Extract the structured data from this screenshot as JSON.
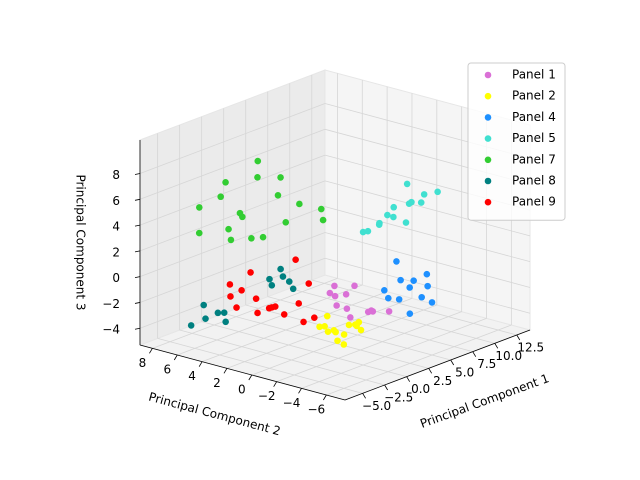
{
  "chart_data": {
    "type": "scatter3d",
    "xlabel": "Principal Component 1",
    "ylabel": "Principal Component 2",
    "zlabel": "Principal Component 3",
    "xlim": [
      -7,
      14
    ],
    "ylim": [
      -7.5,
      9
    ],
    "zlim": [
      -5.3,
      10.6
    ],
    "xticks": [
      {
        "value": -5,
        "label": "−5.0"
      },
      {
        "value": -2.5,
        "label": "−2.5"
      },
      {
        "value": 0,
        "label": "0.0"
      },
      2.5,
      {
        "value": 5,
        "label": "5.0"
      },
      7.5,
      {
        "value": 10,
        "label": "10.0"
      },
      12.5
    ],
    "yticks": [
      8,
      6,
      4,
      2,
      0,
      {
        "value": -2,
        "label": "−2"
      },
      {
        "value": -4,
        "label": "−4"
      },
      {
        "value": -6,
        "label": "−6"
      }
    ],
    "zticks": [
      {
        "value": -4,
        "label": "−4"
      },
      {
        "value": -2,
        "label": "−2"
      },
      0,
      2,
      4,
      6,
      8
    ],
    "grid": true,
    "legend": "upper right",
    "series": [
      {
        "name": "Panel 1",
        "color": "#da70d6",
        "x": [
          2.1,
          3.0,
          4.2,
          2.8,
          3.6,
          1.5,
          4.8,
          2.4,
          3.3,
          5.2,
          2.0,
          3.9
        ],
        "y": [
          -1.2,
          -0.5,
          -1.8,
          0.3,
          -2.1,
          -0.8,
          -1.0,
          -1.6,
          0.6,
          -2.4,
          0.1,
          -0.2
        ],
        "z": [
          -2.2,
          -1.5,
          -2.8,
          -1.0,
          -2.5,
          -1.9,
          -3.2,
          -0.4,
          -2.0,
          -2.9,
          -1.3,
          -3.6
        ]
      },
      {
        "name": "Panel 2",
        "color": "#ffff00",
        "x": [
          -0.5,
          0.4,
          1.2,
          -1.0,
          0.8,
          1.8,
          -0.2,
          0.0,
          1.5,
          -0.8,
          0.6,
          2.2,
          0.2,
          1.0
        ],
        "y": [
          -2.0,
          -1.5,
          -2.8,
          -1.2,
          -0.6,
          -2.2,
          -3.0,
          -0.9,
          -1.4,
          -2.5,
          -3.4,
          -1.8,
          -2.3,
          -0.4
        ],
        "z": [
          -3.0,
          -3.5,
          -2.6,
          -2.8,
          -3.8,
          -3.2,
          -2.4,
          -3.1,
          -4.0,
          -3.6,
          -2.9,
          -3.3,
          -4.2,
          -2.7
        ]
      },
      {
        "name": "Panel 4",
        "color": "#1e90ff",
        "x": [
          5.5,
          6.2,
          7.0,
          8.1,
          6.8,
          7.6,
          5.8,
          8.8,
          6.5,
          7.3,
          9.2,
          6.0
        ],
        "y": [
          -1.8,
          -2.5,
          -3.1,
          -2.0,
          -1.2,
          -3.8,
          -2.9,
          -3.3,
          -4.1,
          -1.5,
          -2.6,
          -3.5
        ],
        "z": [
          -1.5,
          -2.2,
          -0.8,
          -1.9,
          -2.6,
          -1.2,
          -0.5,
          -2.9,
          -1.7,
          0.2,
          -1.0,
          -3.0
        ]
      },
      {
        "name": "Panel 5",
        "color": "#40e0d0",
        "x": [
          9.0,
          9.6,
          10.2,
          10.8,
          11.4,
          12.0,
          9.3,
          10.5,
          11.1,
          11.7,
          12.4,
          10.0,
          9.8,
          11.9
        ],
        "y": [
          2.0,
          1.5,
          0.8,
          1.2,
          0.2,
          -0.4,
          2.6,
          0.0,
          -0.8,
          0.6,
          -1.2,
          1.8,
          1.0,
          0.9
        ],
        "z": [
          1.2,
          1.8,
          2.3,
          2.8,
          3.3,
          3.9,
          0.9,
          2.0,
          3.6,
          3.0,
          4.2,
          1.5,
          2.5,
          4.4
        ]
      },
      {
        "name": "Panel 7",
        "color": "#32cd32",
        "x": [
          -4.5,
          -3.2,
          -2.0,
          -1.0,
          0.2,
          1.5,
          -3.8,
          -2.6,
          -0.4,
          0.8,
          2.5,
          -1.8,
          -3.0,
          0.0,
          1.2,
          -2.2,
          3.0,
          -4.0
        ],
        "y": [
          6.0,
          5.2,
          4.5,
          3.8,
          3.0,
          2.2,
          6.5,
          4.8,
          4.2,
          2.8,
          1.0,
          5.8,
          3.6,
          5.0,
          3.5,
          2.5,
          1.5,
          4.0
        ],
        "z": [
          5.5,
          6.2,
          4.8,
          7.5,
          6.0,
          5.2,
          3.2,
          2.8,
          8.5,
          3.8,
          4.0,
          6.8,
          5.0,
          2.2,
          7.0,
          3.5,
          4.6,
          4.2
        ]
      },
      {
        "name": "Panel 8",
        "color": "#008080",
        "x": [
          -4.5,
          -3.8,
          -3.2,
          -4.0,
          -2.8,
          -5.0,
          -0.5,
          0.2,
          0.8,
          -0.2,
          0.5,
          1.2
        ],
        "y": [
          5.5,
          5.0,
          4.8,
          6.0,
          5.2,
          6.3,
          3.0,
          2.6,
          2.2,
          3.4,
          3.0,
          2.8
        ],
        "z": [
          -3.0,
          -2.6,
          -3.4,
          -2.2,
          -2.9,
          -3.6,
          -0.8,
          -0.2,
          -1.2,
          -0.5,
          0.2,
          -0.9
        ]
      },
      {
        "name": "Panel 9",
        "color": "#ff0000",
        "x": [
          -3.5,
          -2.8,
          -2.0,
          -1.2,
          -0.5,
          0.3,
          -3.0,
          -1.8,
          -0.8,
          0.8,
          -2.4,
          -1.5,
          1.5,
          -3.8,
          2.0,
          0.0
        ],
        "y": [
          4.2,
          3.8,
          3.2,
          2.5,
          2.0,
          1.4,
          4.6,
          1.8,
          3.0,
          0.5,
          2.8,
          4.0,
          2.5,
          3.5,
          1.8,
          0.8
        ],
        "z": [
          -1.2,
          -0.8,
          -1.5,
          -2.2,
          -2.8,
          -2.0,
          -0.5,
          -1.8,
          -2.5,
          -3.0,
          -2.4,
          0.2,
          0.8,
          -1.8,
          -1.0,
          -3.2
        ]
      }
    ]
  }
}
